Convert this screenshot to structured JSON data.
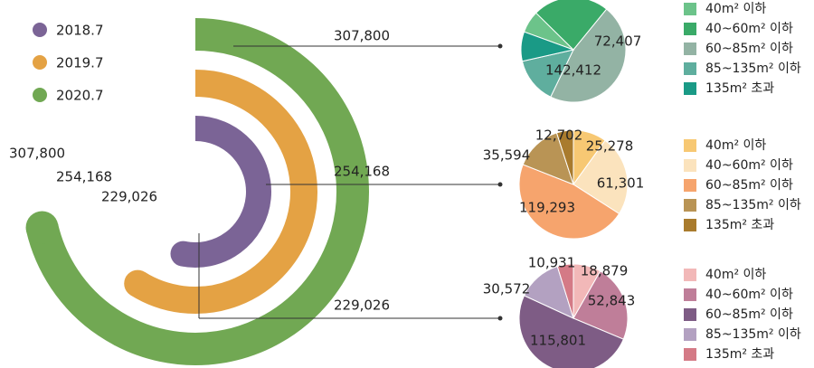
{
  "chart_data": [
    {
      "type": "radial-bar",
      "series": [
        {
          "name": "2018.7",
          "value": 229026,
          "label": "229,026",
          "color": "#7B6496"
        },
        {
          "name": "2019.7",
          "value": 254168,
          "label": "254,168",
          "color": "#E4A244"
        },
        {
          "name": "2020.7",
          "value": 307800,
          "label": "307,800",
          "color": "#71A853"
        }
      ],
      "legend": [
        "2018.7",
        "2019.7",
        "2020.7"
      ],
      "legend_position": "top-left"
    },
    {
      "type": "pie",
      "period": "2020.7",
      "total_label": "307,800",
      "categories": [
        "40m² 이하",
        "40~60m² 이하",
        "60~85m² 이하",
        "85~135m² 이하",
        "135m² 초과"
      ],
      "values": [
        21000,
        72407,
        142412,
        44000,
        28000
      ],
      "data_labels": [
        "",
        "72,407",
        "142,412",
        "",
        ""
      ],
      "colors": [
        "#6CC38A",
        "#3AAA68",
        "#93B3A4",
        "#5FAE9E",
        "#1A9A86"
      ]
    },
    {
      "type": "pie",
      "period": "2019.7",
      "total_label": "254,168",
      "categories": [
        "40m² 이하",
        "40~60m² 이하",
        "60~85m² 이하",
        "85~135m² 이하",
        "135m² 초과"
      ],
      "values": [
        25278,
        61301,
        119293,
        35594,
        12702
      ],
      "data_labels": [
        "25,278",
        "61,301",
        "119,293",
        "35,594",
        "12,702"
      ],
      "colors": [
        "#F7C873",
        "#FBE3BD",
        "#F6A46D",
        "#B99455",
        "#A97B2D"
      ]
    },
    {
      "type": "pie",
      "period": "2018.7",
      "total_label": "229,026",
      "categories": [
        "40m² 이하",
        "40~60m² 이하",
        "60~85m² 이하",
        "85~135m² 이하",
        "135m² 초과"
      ],
      "values": [
        18879,
        52843,
        115801,
        30572,
        10931
      ],
      "data_labels": [
        "18,879",
        "52,843",
        "115,801",
        "30,572",
        "10,931"
      ],
      "colors": [
        "#F2B8B8",
        "#BF7E99",
        "#7E5C85",
        "#B3A1C1",
        "#D47A86"
      ]
    }
  ]
}
